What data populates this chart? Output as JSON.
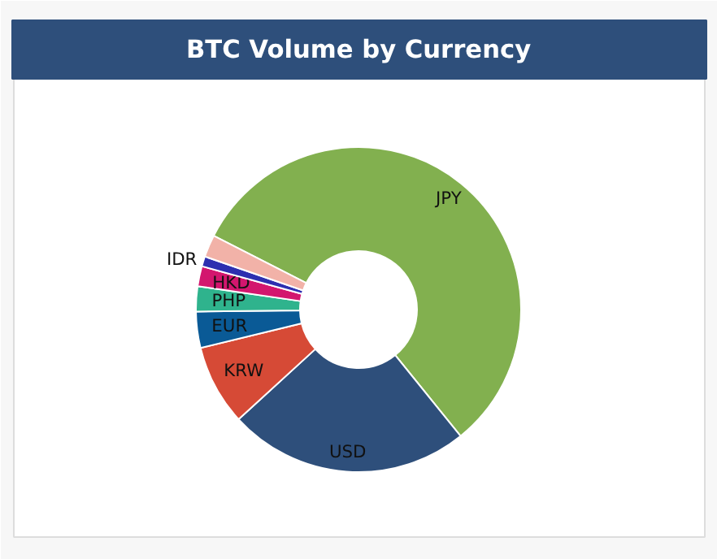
{
  "chart_data": {
    "type": "donut",
    "title": "BTC Volume by Currency",
    "categories": [
      "JPY",
      "USD",
      "KRW",
      "EUR",
      "PHP",
      "HKD",
      "IDR",
      null
    ],
    "values": [
      56.7,
      24,
      8,
      3.6,
      2.5,
      2,
      1,
      2.2
    ],
    "colors": [
      "#82b04f",
      "#2e4f7b",
      "#d64a36",
      "#0a5a96",
      "#2fb38d",
      "#d3166e",
      "#2d2fb0",
      "#f2b2a8"
    ]
  }
}
